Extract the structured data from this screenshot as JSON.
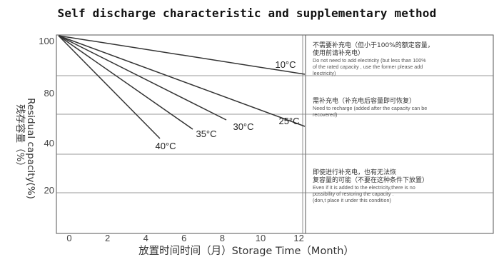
{
  "title": "Self discharge characteristic and supplementary method",
  "chart_data": {
    "type": "line",
    "title": "Self discharge characteristic and supplementary method",
    "xlabel": "放置时间时间（月）Storage Time（Month）",
    "ylabel_zh": "残存容量（%）",
    "ylabel_en": "Residual capacity(%)",
    "x_ticks": [
      0,
      2,
      4,
      6,
      8,
      10,
      12
    ],
    "y_ticks": [
      20,
      40,
      80,
      100
    ],
    "xlim": [
      0,
      12
    ],
    "ylim": [
      0,
      100
    ],
    "grid": true,
    "series": [
      {
        "name": "10°C",
        "x": [
          0,
          12
        ],
        "y": [
          100,
          84
        ]
      },
      {
        "name": "25°C",
        "x": [
          0,
          12
        ],
        "y": [
          100,
          69
        ]
      },
      {
        "name": "30°C",
        "x": [
          0,
          8.5
        ],
        "y": [
          100,
          69
        ]
      },
      {
        "name": "35°C",
        "x": [
          0,
          6.2
        ],
        "y": [
          100,
          67
        ]
      },
      {
        "name": "40°C",
        "x": [
          0,
          4.5
        ],
        "y": [
          100,
          62
        ]
      }
    ],
    "zones": [
      {
        "zh": [
          "不需要补充电（但小于100%的额定容量，",
          "使用前请补充电）"
        ],
        "en": [
          "Do not need to add electricity (but less than 100%",
          "of the rated capacity , use the former please add",
          "leectricity)"
        ]
      },
      {
        "zh": [
          "需补充电（补充电后容量即可恢复）"
        ],
        "en": [
          "Need to recharge (added after the capacity can be",
          "recovered)"
        ]
      },
      {
        "zh": [
          "即使进行补充电，也有无法恢",
          "复容量的可能（不要在这种条件下放置）"
        ],
        "en": [
          "Even if it is added to the electricity,there is no",
          "possibility of restoring the capacity .",
          "(don,t place it under this condition)"
        ]
      }
    ]
  }
}
